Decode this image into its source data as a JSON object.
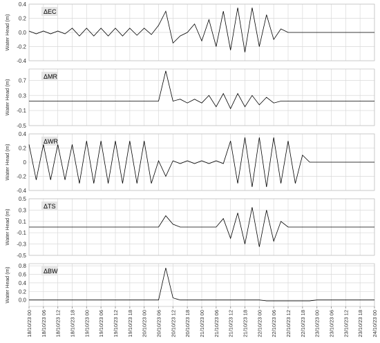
{
  "chart_data": [
    {
      "type": "line",
      "label": "ΔEC",
      "ylabel": "Water Head (m)",
      "xlim": [
        0,
        144
      ],
      "ylim": [
        -0.4,
        0.4
      ],
      "yticks": [
        -0.4,
        -0.2,
        {
          "value": 0,
          "label": "0.0"
        },
        0.2,
        0.4
      ],
      "grid": true,
      "series": [
        {
          "name": "ΔEC",
          "color": "#000000",
          "x": [
            0,
            3,
            6,
            9,
            12,
            15,
            18,
            21,
            24,
            27,
            30,
            33,
            36,
            39,
            42,
            45,
            48,
            51,
            54,
            57,
            60,
            63,
            66,
            69,
            72,
            75,
            78,
            81,
            84,
            87,
            90,
            93,
            96,
            99,
            102,
            105,
            108,
            111,
            114,
            117,
            120,
            123,
            126,
            129,
            132,
            135,
            138,
            141,
            144
          ],
          "values": [
            0.02,
            -0.02,
            0.02,
            -0.02,
            0.02,
            -0.02,
            0.06,
            -0.05,
            0.06,
            -0.05,
            0.06,
            -0.05,
            0.06,
            -0.05,
            0.06,
            -0.04,
            0.06,
            -0.03,
            0.1,
            0.3,
            -0.15,
            -0.05,
            0,
            0.12,
            -0.12,
            0.18,
            -0.2,
            0.3,
            -0.25,
            0.35,
            -0.28,
            0.35,
            -0.2,
            0.25,
            -0.1,
            0.05,
            0,
            0,
            0,
            0,
            0,
            0,
            0,
            0,
            0,
            0,
            0,
            0,
            0
          ]
        }
      ]
    },
    {
      "type": "line",
      "label": "ΔMR",
      "ylabel": "Water Head (m)",
      "xlim": [
        0,
        144
      ],
      "ylim": [
        -0.5,
        1.0
      ],
      "yticks": [
        -0.5,
        -0.1,
        0.3,
        0.7
      ],
      "grid": true,
      "series": [
        {
          "name": "ΔMR",
          "color": "#000000",
          "x": [
            0,
            3,
            6,
            9,
            12,
            15,
            18,
            21,
            24,
            27,
            30,
            33,
            36,
            39,
            42,
            45,
            48,
            51,
            54,
            57,
            60,
            63,
            66,
            69,
            72,
            75,
            78,
            81,
            84,
            87,
            90,
            93,
            96,
            99,
            102,
            105,
            108,
            111,
            114,
            117,
            120,
            123,
            126,
            129,
            132,
            135,
            138,
            141,
            144
          ],
          "values": [
            0.15,
            0.15,
            0.15,
            0.15,
            0.15,
            0.15,
            0.15,
            0.15,
            0.15,
            0.15,
            0.15,
            0.15,
            0.15,
            0.15,
            0.15,
            0.15,
            0.15,
            0.15,
            0.15,
            0.95,
            0.15,
            0.2,
            0.1,
            0.2,
            0.1,
            0.3,
            0,
            0.35,
            -0.05,
            0.35,
            0,
            0.3,
            0.05,
            0.25,
            0.1,
            0.15,
            0.15,
            0.15,
            0.15,
            0.15,
            0.15,
            0.15,
            0.15,
            0.15,
            0.15,
            0.15,
            0.15,
            0.15,
            0.15
          ]
        }
      ]
    },
    {
      "type": "line",
      "label": "ΔWR",
      "ylabel": "Water Head (m)",
      "xlim": [
        0,
        144
      ],
      "ylim": [
        -0.4,
        0.4
      ],
      "yticks": [
        -0.4,
        -0.2,
        0,
        0.2,
        0.4
      ],
      "grid": true,
      "series": [
        {
          "name": "ΔWR",
          "color": "#000000",
          "x": [
            0,
            3,
            6,
            9,
            12,
            15,
            18,
            21,
            24,
            27,
            30,
            33,
            36,
            39,
            42,
            45,
            48,
            51,
            54,
            57,
            60,
            63,
            66,
            69,
            72,
            75,
            78,
            81,
            84,
            87,
            90,
            93,
            96,
            99,
            102,
            105,
            108,
            111,
            114,
            117,
            120,
            123,
            126,
            129,
            132,
            135,
            138,
            141,
            144
          ],
          "values": [
            0.25,
            -0.25,
            0.25,
            -0.25,
            0.25,
            -0.25,
            0.25,
            -0.3,
            0.3,
            -0.3,
            0.3,
            -0.3,
            0.3,
            -0.3,
            0.3,
            -0.3,
            0.3,
            -0.3,
            0.02,
            -0.2,
            0.02,
            -0.02,
            0.02,
            -0.02,
            0.02,
            -0.02,
            0.02,
            -0.02,
            0.3,
            -0.3,
            0.35,
            -0.35,
            0.35,
            -0.35,
            0.35,
            -0.3,
            0.3,
            -0.3,
            0.1,
            0,
            0,
            0,
            0,
            0,
            0,
            0,
            0,
            0,
            0
          ]
        }
      ]
    },
    {
      "type": "line",
      "label": "ΔTS",
      "ylabel": "Water Head (m)",
      "xlim": [
        0,
        144
      ],
      "ylim": [
        -0.5,
        0.5
      ],
      "yticks": [
        -0.5,
        -0.3,
        -0.1,
        0.1,
        0.3,
        0.5
      ],
      "grid": true,
      "series": [
        {
          "name": "ΔTS",
          "color": "#000000",
          "x": [
            0,
            3,
            6,
            9,
            12,
            15,
            18,
            21,
            24,
            27,
            30,
            33,
            36,
            39,
            42,
            45,
            48,
            51,
            54,
            57,
            60,
            63,
            66,
            69,
            72,
            75,
            78,
            81,
            84,
            87,
            90,
            93,
            96,
            99,
            102,
            105,
            108,
            111,
            114,
            117,
            120,
            123,
            126,
            129,
            132,
            135,
            138,
            141,
            144
          ],
          "values": [
            0,
            0,
            0,
            0,
            0,
            0,
            0,
            0,
            0,
            0,
            0,
            0,
            0,
            0,
            0,
            0,
            0,
            0,
            0,
            0.2,
            0.05,
            0,
            0,
            0,
            0,
            0,
            0,
            0.15,
            -0.2,
            0.25,
            -0.3,
            0.35,
            -0.35,
            0.3,
            -0.25,
            0.1,
            0,
            0,
            0,
            0,
            0,
            0,
            0,
            0,
            0,
            0,
            0,
            0,
            0
          ]
        }
      ]
    },
    {
      "type": "line",
      "label": "ΔBW",
      "ylabel": "Water Head (m)",
      "xlim": [
        0,
        144
      ],
      "ylim": [
        -0.15,
        0.85
      ],
      "yticks": [
        {
          "value": 0,
          "label": "0.0"
        },
        0.2,
        0.4,
        0.6,
        0.8
      ],
      "grid": true,
      "xticks": [
        {
          "value": 0,
          "label": "18/10/23 00"
        },
        {
          "value": 6,
          "label": "18/10/23 06"
        },
        {
          "value": 12,
          "label": "18/10/23 12"
        },
        {
          "value": 18,
          "label": "18/10/23 18"
        },
        {
          "value": 24,
          "label": "19/10/23 00"
        },
        {
          "value": 30,
          "label": "19/10/23 06"
        },
        {
          "value": 36,
          "label": "19/10/23 12"
        },
        {
          "value": 42,
          "label": "19/10/23 18"
        },
        {
          "value": 48,
          "label": "20/10/23 00"
        },
        {
          "value": 54,
          "label": "20/10/23 06"
        },
        {
          "value": 60,
          "label": "20/10/23 12"
        },
        {
          "value": 66,
          "label": "20/10/23 18"
        },
        {
          "value": 72,
          "label": "21/10/23 00"
        },
        {
          "value": 78,
          "label": "21/10/23 06"
        },
        {
          "value": 84,
          "label": "21/10/23 12"
        },
        {
          "value": 90,
          "label": "21/10/23 18"
        },
        {
          "value": 96,
          "label": "22/10/23 00"
        },
        {
          "value": 102,
          "label": "22/10/23 06"
        },
        {
          "value": 108,
          "label": "22/10/23 12"
        },
        {
          "value": 114,
          "label": "22/10/23 18"
        },
        {
          "value": 120,
          "label": "23/10/23 00"
        },
        {
          "value": 126,
          "label": "23/10/23 06"
        },
        {
          "value": 132,
          "label": "23/10/23 12"
        },
        {
          "value": 138,
          "label": "23/10/23 18"
        },
        {
          "value": 144,
          "label": "24/10/23 00"
        }
      ],
      "series": [
        {
          "name": "ΔBW",
          "color": "#000000",
          "x": [
            0,
            3,
            6,
            9,
            12,
            15,
            18,
            21,
            24,
            27,
            30,
            33,
            36,
            39,
            42,
            45,
            48,
            51,
            54,
            57,
            60,
            63,
            66,
            69,
            72,
            75,
            78,
            81,
            84,
            87,
            90,
            93,
            96,
            99,
            102,
            105,
            108,
            111,
            114,
            117,
            120,
            123,
            126,
            129,
            132,
            135,
            138,
            141,
            144
          ],
          "values": [
            0,
            0,
            0,
            0,
            0,
            0,
            0,
            0,
            0,
            0,
            0,
            0,
            0,
            0,
            0,
            0,
            0,
            0,
            0,
            0.75,
            0.05,
            0,
            0,
            0,
            0,
            0,
            0,
            0,
            0,
            0,
            0,
            0,
            0,
            -0.02,
            -0.02,
            -0.02,
            -0.02,
            -0.02,
            -0.02,
            -0.02,
            0,
            0,
            0,
            0,
            0,
            0,
            0,
            0,
            0
          ]
        }
      ]
    }
  ]
}
